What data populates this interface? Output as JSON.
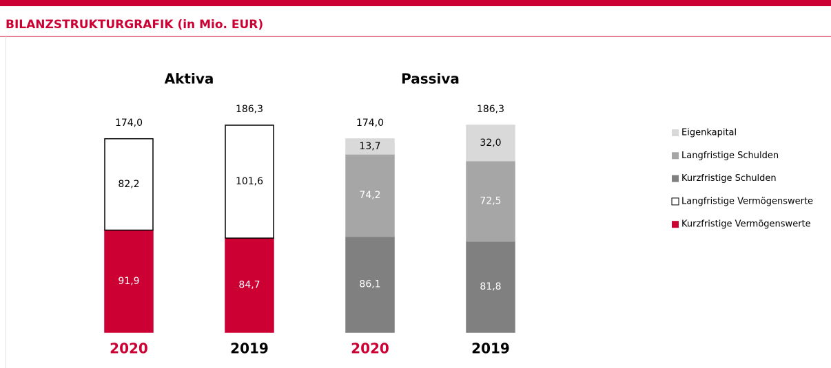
{
  "header": {
    "title": "BILANZSTRUKTURGRAFIK (in Mio. EUR)"
  },
  "chart_data": {
    "type": "stacked_bar",
    "groups": [
      "Aktiva",
      "Passiva"
    ],
    "categories": [
      "2020",
      "2019",
      "2020",
      "2019"
    ],
    "category_colors": [
      "#cc0033",
      "#000000",
      "#cc0033",
      "#000000"
    ],
    "totals": {
      "values": [
        174.0,
        186.3,
        174.0,
        186.3
      ],
      "value_labels": [
        "174,0",
        "186,3",
        "174,0",
        "186,3"
      ]
    },
    "series": [
      {
        "name": "Kurzfristige Vermögenswerte",
        "color": "#cc0033",
        "border": "#cc0033",
        "label_color": "#ffffff",
        "values": [
          91.9,
          84.7,
          null,
          null
        ],
        "value_labels": [
          "91,9",
          "84,7",
          null,
          null
        ]
      },
      {
        "name": "Langfristige Vermögenswerte",
        "color": "#ffffff",
        "border": "#000000",
        "label_color": "#000000",
        "values": [
          82.2,
          101.6,
          null,
          null
        ],
        "value_labels": [
          "82,2",
          "101,6",
          null,
          null
        ]
      },
      {
        "name": "Kurzfristige Schulden",
        "color": "#808080",
        "border": "#808080",
        "label_color": "#ffffff",
        "values": [
          null,
          null,
          86.1,
          81.8
        ],
        "value_labels": [
          null,
          null,
          "86,1",
          "81,8"
        ]
      },
      {
        "name": "Langfristige Schulden",
        "color": "#a6a6a6",
        "border": "#a6a6a6",
        "label_color": "#ffffff",
        "values": [
          null,
          null,
          74.2,
          72.5
        ],
        "value_labels": [
          null,
          null,
          "74,2",
          "72,5"
        ]
      },
      {
        "name": "Eigenkapital",
        "color": "#d9d9d9",
        "border": "#d9d9d9",
        "label_color": "#000000",
        "values": [
          null,
          null,
          13.7,
          32.0
        ],
        "value_labels": [
          null,
          null,
          "13,7",
          "32,0"
        ]
      }
    ]
  }
}
